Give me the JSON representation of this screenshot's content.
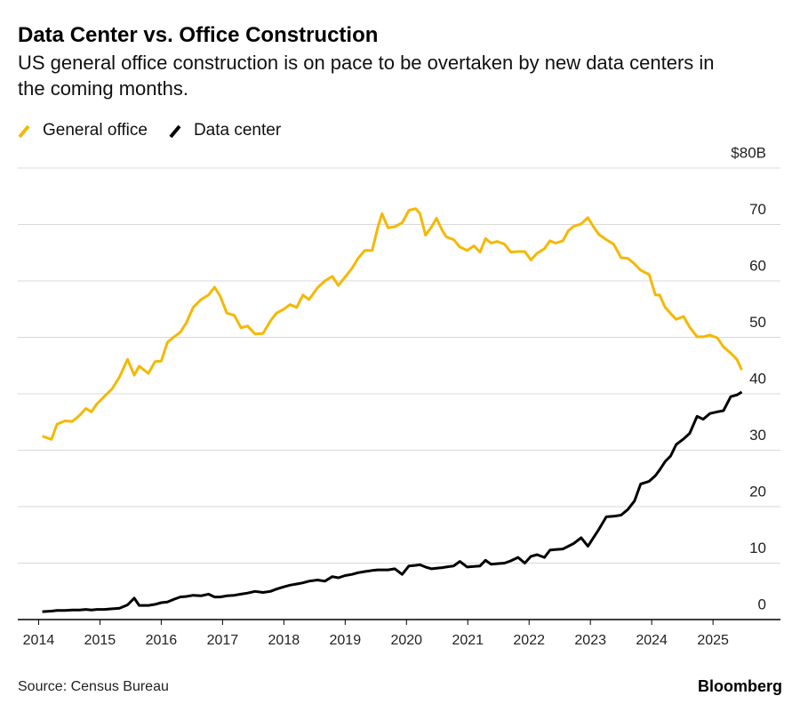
{
  "chart_data": {
    "type": "line",
    "title": "Data Center vs. Office Construction",
    "subtitle": "US general office construction is on pace to be overtaken by new data centers in the coming months.",
    "source": "Source: Census Bureau",
    "brand": "Bloomberg",
    "x": [
      2014.06,
      2014.21,
      2014.3,
      2014.43,
      2014.55,
      2014.67,
      2014.77,
      2014.86,
      2014.95,
      2015.07,
      2015.2,
      2015.32,
      2015.45,
      2015.56,
      2015.64,
      2015.79,
      2015.9,
      2016.0,
      2016.1,
      2016.21,
      2016.31,
      2016.41,
      2016.52,
      2016.65,
      2016.77,
      2016.87,
      2016.96,
      2017.07,
      2017.19,
      2017.3,
      2017.41,
      2017.53,
      2017.66,
      2017.78,
      2017.88,
      2018.0,
      2018.1,
      2018.21,
      2018.31,
      2018.41,
      2018.55,
      2018.67,
      2018.79,
      2018.89,
      2019.0,
      2019.11,
      2019.21,
      2019.32,
      2019.44,
      2019.53,
      2019.6,
      2019.7,
      2019.81,
      2019.93,
      2020.04,
      2020.15,
      2020.22,
      2020.31,
      2020.41,
      2020.49,
      2020.58,
      2020.65,
      2020.77,
      2020.87,
      2020.99,
      2021.1,
      2021.2,
      2021.29,
      2021.38,
      2021.48,
      2021.6,
      2021.7,
      2021.82,
      2021.93,
      2022.03,
      2022.13,
      2022.25,
      2022.34,
      2022.43,
      2022.55,
      2022.64,
      2022.73,
      2022.85,
      2022.96,
      2023.05,
      2023.14,
      2023.26,
      2023.38,
      2023.5,
      2023.61,
      2023.72,
      2023.82,
      2023.96,
      2024.06,
      2024.13,
      2024.22,
      2024.31,
      2024.4,
      2024.52,
      2024.62,
      2024.74,
      2024.84,
      2024.95,
      2025.07,
      2025.17,
      2025.29,
      2025.39,
      2025.47
    ],
    "series": [
      {
        "name": "General office",
        "color": "#f5b800",
        "values": [
          32.5,
          31.9,
          34.6,
          35.2,
          35.1,
          36.2,
          37.4,
          36.8,
          38.2,
          39.5,
          40.9,
          43.0,
          46.1,
          43.3,
          44.9,
          43.6,
          45.7,
          45.8,
          49.1,
          50.1,
          50.9,
          52.6,
          55.3,
          56.7,
          57.5,
          58.9,
          57.3,
          54.3,
          53.9,
          51.7,
          52.0,
          50.6,
          50.7,
          52.9,
          54.3,
          55.0,
          55.8,
          55.3,
          57.5,
          56.7,
          58.8,
          60.0,
          60.8,
          59.2,
          60.7,
          62.2,
          64.0,
          65.4,
          65.4,
          69.4,
          71.9,
          69.4,
          69.6,
          70.3,
          72.5,
          72.8,
          71.9,
          68.1,
          69.6,
          71.1,
          69.0,
          67.8,
          67.3,
          66.0,
          65.4,
          66.2,
          65.1,
          67.5,
          66.7,
          67.0,
          66.5,
          65.1,
          65.2,
          65.2,
          63.7,
          64.9,
          65.7,
          67.1,
          66.7,
          67.1,
          68.9,
          69.7,
          70.1,
          71.2,
          69.6,
          68.2,
          67.3,
          66.5,
          64.1,
          64.0,
          63.0,
          61.9,
          61.1,
          57.5,
          57.5,
          55.3,
          54.2,
          53.2,
          53.7,
          51.8,
          50.1,
          50.1,
          50.4,
          49.9,
          48.3,
          47.2,
          46.1,
          44.2
        ]
      },
      {
        "name": "Data center",
        "color": "#000000",
        "values": [
          1.4,
          1.5,
          1.6,
          1.6,
          1.7,
          1.7,
          1.8,
          1.7,
          1.8,
          1.8,
          1.9,
          2.0,
          2.6,
          3.8,
          2.5,
          2.5,
          2.7,
          3.0,
          3.1,
          3.6,
          4.0,
          4.1,
          4.3,
          4.2,
          4.5,
          4.0,
          4.0,
          4.2,
          4.3,
          4.5,
          4.7,
          5.0,
          4.8,
          5.0,
          5.4,
          5.8,
          6.1,
          6.3,
          6.5,
          6.8,
          7.0,
          6.8,
          7.6,
          7.4,
          7.8,
          8.0,
          8.3,
          8.5,
          8.7,
          8.8,
          8.8,
          8.8,
          9.0,
          8.0,
          9.5,
          9.6,
          9.7,
          9.3,
          9.0,
          9.1,
          9.2,
          9.3,
          9.5,
          10.3,
          9.3,
          9.4,
          9.5,
          10.5,
          9.8,
          9.9,
          10.0,
          10.4,
          11.0,
          10.0,
          11.2,
          11.5,
          11.0,
          12.3,
          12.4,
          12.5,
          13.0,
          13.5,
          14.5,
          13.0,
          14.5,
          16.0,
          18.2,
          18.3,
          18.5,
          19.5,
          21.0,
          24.0,
          24.5,
          25.5,
          26.5,
          28.0,
          29.0,
          31.0,
          32.0,
          33.0,
          36.0,
          35.5,
          36.5,
          36.8,
          37.0,
          39.5,
          39.8,
          40.3
        ]
      }
    ],
    "xlim": [
      2013.66,
      2026.1
    ],
    "xticks": [
      2014,
      2015,
      2016,
      2017,
      2018,
      2019,
      2020,
      2021,
      2022,
      2023,
      2024,
      2025
    ],
    "ylim": [
      0,
      80
    ],
    "yticks": [
      0,
      10,
      20,
      30,
      40,
      50,
      60,
      70,
      {
        "value": 80,
        "label": "$80B"
      }
    ],
    "grid": true
  }
}
